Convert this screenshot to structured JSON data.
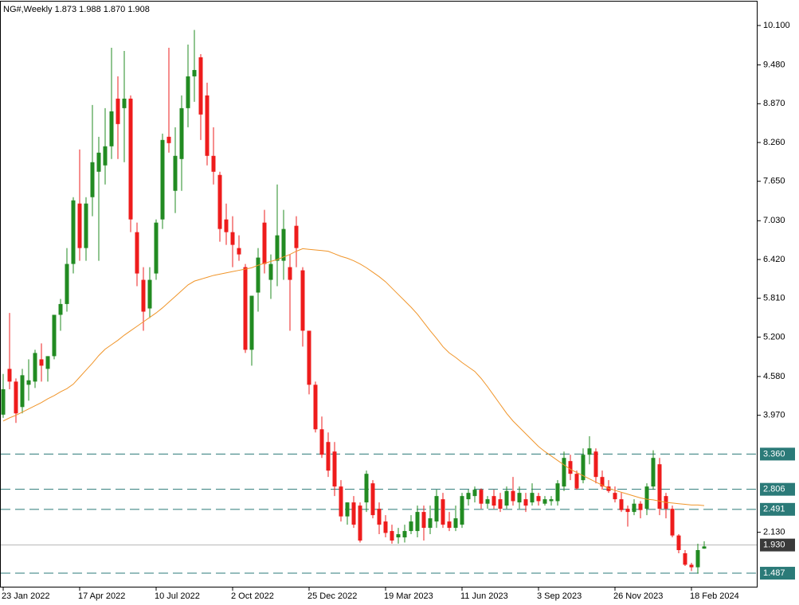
{
  "chart_data": {
    "type": "candlestick",
    "title": "NG#,Weekly  1.873 1.988 1.870 1.908",
    "categories": [
      "23 Jan 2022",
      null,
      null,
      null,
      null,
      null,
      null,
      null,
      null,
      null,
      null,
      null,
      "17 Apr 2022",
      null,
      null,
      null,
      null,
      null,
      null,
      null,
      null,
      null,
      null,
      null,
      "10 Jul 2022",
      null,
      null,
      null,
      null,
      null,
      null,
      null,
      null,
      null,
      null,
      null,
      "2 Oct 2022",
      null,
      null,
      null,
      null,
      null,
      null,
      null,
      null,
      null,
      null,
      null,
      "25 Dec 2022",
      null,
      null,
      null,
      null,
      null,
      null,
      null,
      null,
      null,
      null,
      null,
      "19 Mar 2023",
      null,
      null,
      null,
      null,
      null,
      null,
      null,
      null,
      null,
      null,
      null,
      "11 Jun 2023",
      null,
      null,
      null,
      null,
      null,
      null,
      null,
      null,
      null,
      null,
      null,
      "3 Sep 2023",
      null,
      null,
      null,
      null,
      null,
      null,
      null,
      null,
      null,
      null,
      null,
      "26 Nov 2023",
      null,
      null,
      null,
      null,
      null,
      null,
      null,
      null,
      null,
      null,
      null,
      "18 Feb 2024",
      null,
      null
    ],
    "open": [
      3.98,
      4.7,
      4.5,
      4.1,
      4.45,
      4.5,
      4.85,
      4.7,
      4.9,
      5.55,
      5.72,
      6.35,
      7.3,
      6.6,
      7.4,
      7.8,
      7.9,
      8.2,
      8.95,
      8.8,
      8.95,
      6.85,
      6.1,
      5.65,
      6.2,
      7.05,
      8.35,
      7.5,
      8.0,
      8.8,
      9.3,
      9.6,
      9.0,
      8.05,
      7.75,
      7.05,
      6.85,
      6.6,
      6.3,
      5.0,
      5.9,
      7.0,
      6.1,
      6.4,
      6.4,
      6.3,
      6.95,
      6.25,
      5.3,
      4.45,
      3.75,
      3.55,
      3.4,
      2.85,
      2.38,
      2.6,
      2.55,
      2.6,
      2.9,
      2.5,
      2.3,
      2.15,
      2.05,
      2.05,
      2.15,
      2.15,
      2.45,
      2.2,
      2.3,
      2.65,
      2.3,
      2.2,
      2.25,
      2.65,
      2.7,
      2.8,
      2.58,
      2.7,
      2.65,
      2.55,
      2.78,
      2.6,
      2.65,
      2.6,
      2.7,
      2.58,
      2.62,
      2.62,
      2.85,
      3.25,
      3.05,
      2.95,
      3.35,
      3.4,
      3.0,
      2.85,
      2.75,
      2.65,
      2.5,
      2.45,
      2.58,
      2.5,
      2.85,
      3.2,
      2.7,
      2.5,
      2.08,
      1.8,
      1.62,
      1.58,
      1.873
    ],
    "high": [
      4.62,
      5.58,
      4.55,
      4.7,
      4.85,
      5.0,
      5.1,
      4.9,
      5.55,
      5.8,
      6.6,
      7.4,
      8.15,
      7.4,
      8.85,
      8.35,
      8.8,
      9.75,
      9.3,
      9.7,
      9.0,
      7.0,
      6.3,
      6.3,
      7.05,
      8.4,
      9.75,
      8.5,
      9.0,
      9.8,
      10.03,
      9.65,
      9.2,
      8.5,
      7.8,
      7.3,
      7.1,
      6.8,
      6.35,
      5.85,
      6.6,
      7.2,
      6.5,
      7.6,
      7.2,
      6.5,
      7.1,
      6.3,
      5.3,
      4.5,
      3.95,
      3.7,
      3.55,
      2.95,
      2.6,
      2.7,
      2.6,
      3.1,
      2.95,
      2.6,
      2.4,
      2.25,
      2.2,
      2.25,
      2.4,
      2.55,
      2.55,
      2.55,
      2.8,
      2.75,
      2.45,
      2.55,
      2.75,
      2.8,
      2.85,
      2.82,
      2.7,
      2.8,
      2.75,
      2.85,
      3.0,
      2.85,
      2.75,
      2.9,
      2.75,
      2.7,
      2.7,
      2.95,
      3.4,
      3.35,
      3.1,
      3.45,
      3.64,
      3.45,
      3.1,
      2.95,
      2.85,
      2.75,
      2.55,
      2.65,
      2.62,
      2.9,
      3.42,
      3.3,
      2.75,
      2.55,
      2.1,
      1.85,
      1.65,
      1.95,
      1.988
    ],
    "low": [
      3.93,
      4.38,
      3.85,
      4.0,
      4.2,
      4.4,
      4.5,
      4.5,
      4.85,
      5.3,
      5.6,
      6.2,
      6.4,
      6.4,
      7.1,
      6.4,
      7.6,
      8.0,
      8.0,
      7.95,
      6.85,
      6.0,
      5.3,
      5.5,
      6.1,
      6.9,
      8.1,
      7.15,
      7.5,
      8.5,
      8.9,
      8.3,
      7.9,
      7.6,
      6.7,
      6.65,
      6.3,
      6.4,
      4.95,
      4.75,
      5.6,
      6.2,
      5.8,
      6.0,
      6.1,
      5.3,
      6.3,
      5.05,
      4.3,
      3.7,
      3.3,
      3.0,
      2.7,
      2.3,
      2.25,
      2.2,
      1.97,
      2.45,
      2.35,
      2.1,
      2.05,
      1.95,
      1.95,
      1.97,
      2.1,
      2.05,
      2.0,
      2.1,
      2.2,
      2.2,
      2.15,
      2.15,
      2.2,
      2.55,
      2.6,
      2.5,
      2.5,
      2.5,
      2.45,
      2.5,
      2.55,
      2.5,
      2.45,
      2.55,
      2.55,
      2.55,
      2.55,
      2.55,
      2.78,
      2.95,
      2.8,
      2.9,
      3.2,
      2.9,
      2.8,
      2.75,
      2.6,
      2.45,
      2.22,
      2.4,
      2.35,
      2.4,
      2.8,
      2.4,
      2.35,
      2.05,
      1.8,
      1.6,
      1.52,
      1.48,
      1.87
    ],
    "close": [
      4.38,
      4.5,
      4.0,
      4.6,
      4.52,
      4.95,
      4.75,
      4.9,
      5.55,
      5.72,
      6.35,
      7.35,
      6.6,
      7.3,
      7.95,
      8.1,
      8.2,
      8.75,
      8.55,
      8.95,
      7.05,
      6.2,
      5.6,
      6.1,
      7.0,
      8.3,
      8.25,
      8.05,
      8.8,
      9.3,
      9.4,
      8.7,
      8.05,
      7.8,
      6.9,
      6.85,
      6.65,
      6.5,
      5.0,
      5.85,
      6.45,
      6.35,
      6.35,
      6.8,
      6.9,
      6.1,
      6.6,
      5.3,
      4.45,
      3.75,
      3.35,
      3.1,
      2.85,
      2.38,
      2.6,
      2.25,
      2.0,
      3.05,
      2.4,
      2.25,
      2.12,
      2.0,
      2.1,
      2.15,
      2.3,
      2.45,
      2.2,
      2.35,
      2.7,
      2.25,
      2.2,
      2.35,
      2.7,
      2.75,
      2.8,
      2.58,
      2.65,
      2.55,
      2.5,
      2.78,
      2.62,
      2.75,
      2.55,
      2.75,
      2.62,
      2.65,
      2.65,
      2.9,
      3.3,
      3.05,
      2.82,
      3.35,
      3.45,
      3.0,
      2.85,
      2.78,
      2.65,
      2.48,
      2.45,
      2.58,
      2.48,
      2.85,
      3.3,
      2.5,
      2.5,
      2.08,
      1.85,
      1.62,
      1.58,
      1.85,
      1.908
    ],
    "up_color": "#228b22",
    "down_color": "#ee1c1c",
    "ma": {
      "color": "#f0952a",
      "values": [
        3.88,
        3.93,
        3.97,
        4.02,
        4.07,
        4.12,
        4.17,
        4.23,
        4.28,
        4.34,
        4.39,
        4.46,
        4.57,
        4.68,
        4.79,
        4.91,
        5.01,
        5.08,
        5.15,
        5.23,
        5.3,
        5.37,
        5.44,
        5.51,
        5.58,
        5.66,
        5.75,
        5.84,
        5.93,
        6.02,
        6.08,
        6.11,
        6.14,
        6.17,
        6.19,
        6.21,
        6.23,
        6.25,
        6.27,
        6.29,
        6.33,
        6.36,
        6.39,
        6.42,
        6.46,
        6.5,
        6.55,
        6.59,
        6.58,
        6.57,
        6.56,
        6.55,
        6.51,
        6.47,
        6.44,
        6.4,
        6.35,
        6.29,
        6.22,
        6.15,
        6.07,
        5.97,
        5.87,
        5.77,
        5.67,
        5.56,
        5.43,
        5.3,
        5.18,
        5.05,
        4.95,
        4.88,
        4.8,
        4.73,
        4.66,
        4.55,
        4.42,
        4.28,
        4.14,
        4.0,
        3.88,
        3.78,
        3.68,
        3.58,
        3.48,
        3.4,
        3.33,
        3.26,
        3.19,
        3.12,
        3.07,
        3.02,
        2.97,
        2.92,
        2.87,
        2.82,
        2.79,
        2.76,
        2.73,
        2.7,
        2.67,
        2.65,
        2.64,
        2.62,
        2.6,
        2.59,
        2.58,
        2.57,
        2.56,
        2.56,
        2.55
      ]
    },
    "hlines": {
      "color": "#2b7a78",
      "values": [
        {
          "value": 3.36,
          "label": "3.360"
        },
        {
          "value": 2.806,
          "label": "2.806"
        },
        {
          "value": 2.491,
          "label": "2.491"
        },
        {
          "value": 1.487,
          "label": "1.487"
        }
      ]
    },
    "price_line": {
      "color": "#b4b4b4",
      "label_color": "#3a3a3a",
      "value": 1.93,
      "label": "1.930"
    },
    "ylim": [
      1.262,
      10.476
    ],
    "yticks": [
      {
        "value": 10.1,
        "label": "10.100"
      },
      {
        "value": 9.48,
        "label": "9.480"
      },
      {
        "value": 8.87,
        "label": "8.870"
      },
      {
        "value": 8.26,
        "label": "8.260"
      },
      {
        "value": 7.65,
        "label": "7.650"
      },
      {
        "value": 7.03,
        "label": "7.030"
      },
      {
        "value": 6.42,
        "label": "6.420"
      },
      {
        "value": 5.81,
        "label": "5.810"
      },
      {
        "value": 5.2,
        "label": "5.200"
      },
      {
        "value": 4.58,
        "label": "4.580"
      },
      {
        "value": 3.97,
        "label": "3.970"
      },
      {
        "value": 2.13,
        "label": "2.130"
      }
    ]
  }
}
